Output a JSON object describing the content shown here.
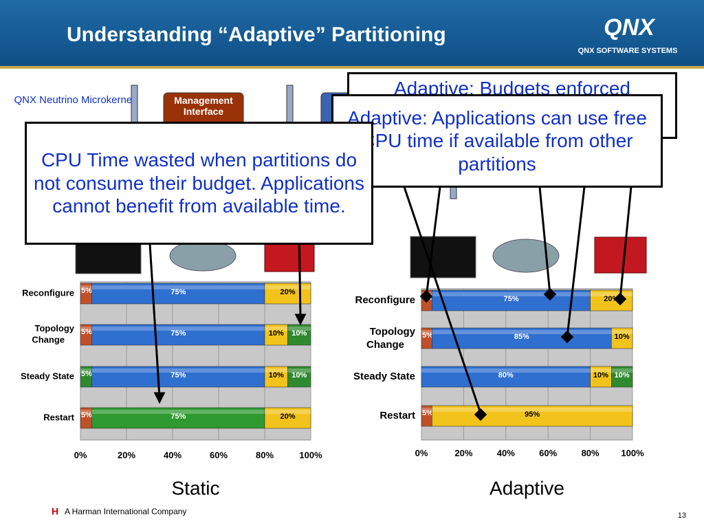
{
  "header": {
    "title": "Understanding “Adaptive” Partitioning",
    "logo": "QNX",
    "logo_sub": "QNX SOFTWARE SYSTEMS"
  },
  "diagram": {
    "kernel": "QNX Neutrino Microkernel",
    "management": "Management Interface"
  },
  "callouts": [
    "Adaptive: Budgets enforced",
    "Adaptive: Applications can use free CPU time if available from other partitions",
    "CPU Time wasted when partitions do not consume their budget.  Applications cannot benefit from available time."
  ],
  "footer": {
    "company": "A Harman International Company",
    "page": "13"
  },
  "chart_data": [
    {
      "type": "bar",
      "orientation": "horizontal",
      "title": "Static",
      "categories": [
        "Reconfigure",
        "Topology Change",
        "Steady State",
        "Restart"
      ],
      "series": [
        {
          "colors": [
            "#c0502a",
            "#c0502a",
            "#2f8a2f",
            "#c0502a"
          ],
          "values": [
            5,
            5,
            5,
            5
          ],
          "value_labels": [
            "5%",
            "5%",
            "5%",
            "5%"
          ]
        },
        {
          "colors": [
            "#2f6fd0",
            "#2f6fd0",
            "#2f6fd0",
            "#2f9a2f"
          ],
          "values": [
            75,
            75,
            75,
            75
          ],
          "value_labels": [
            "75%",
            "75%",
            "75%",
            "75%"
          ]
        },
        {
          "colors": [
            "#f2c31a",
            "#f2c31a",
            "#f2c31a",
            "#f2c31a"
          ],
          "values": [
            20,
            10,
            10,
            20
          ],
          "value_labels": [
            "20%",
            "10%",
            "10%",
            "20%"
          ]
        },
        {
          "colors": [
            "#2f8a2f",
            "#2f8a2f",
            "#2f8a2f",
            "#2f8a2f"
          ],
          "values": [
            null,
            10,
            10,
            null
          ],
          "value_labels": [
            null,
            "10%",
            "10%",
            null
          ]
        }
      ],
      "xlim": [
        0,
        100
      ],
      "xticks": [
        {
          "value": 0,
          "label": "0%"
        },
        {
          "value": 20,
          "label": "20%"
        },
        {
          "value": 40,
          "label": "40%"
        },
        {
          "value": 60,
          "label": "60%"
        },
        {
          "value": 80,
          "label": "80%"
        },
        {
          "value": 100,
          "label": "100%"
        }
      ],
      "grid": true
    },
    {
      "type": "bar",
      "orientation": "horizontal",
      "title": "Adaptive",
      "categories": [
        "Reconfigure",
        "Topology Change",
        "Steady State",
        "Restart"
      ],
      "series": [
        {
          "colors": [
            "#c0502a",
            "#c0502a",
            "#c0502a",
            "#c0502a"
          ],
          "values": [
            5,
            5,
            null,
            5
          ],
          "value_labels": [
            "5%",
            "5%",
            null,
            "5%"
          ]
        },
        {
          "colors": [
            "#2f6fd0",
            "#2f6fd0",
            "#2f6fd0",
            "#2f6fd0"
          ],
          "values": [
            75,
            85,
            80,
            null
          ],
          "value_labels": [
            "75%",
            "85%",
            "80%",
            null
          ]
        },
        {
          "colors": [
            "#f2c31a",
            "#f2c31a",
            "#f2c31a",
            "#f2c31a"
          ],
          "values": [
            20,
            10,
            10,
            95
          ],
          "value_labels": [
            "20%",
            "10%",
            "10%",
            "95%"
          ]
        },
        {
          "colors": [
            "#2f8a2f",
            "#2f8a2f",
            "#2f8a2f",
            "#2f8a2f"
          ],
          "values": [
            null,
            null,
            10,
            null
          ],
          "value_labels": [
            null,
            null,
            "10%",
            null
          ]
        }
      ],
      "xlim": [
        0,
        100
      ],
      "xticks": [
        {
          "value": 0,
          "label": "0%"
        },
        {
          "value": 20,
          "label": "20%"
        },
        {
          "value": 40,
          "label": "40%"
        },
        {
          "value": 60,
          "label": "60%"
        },
        {
          "value": 80,
          "label": "80%"
        },
        {
          "value": 100,
          "label": "100%"
        }
      ],
      "grid": true
    }
  ]
}
